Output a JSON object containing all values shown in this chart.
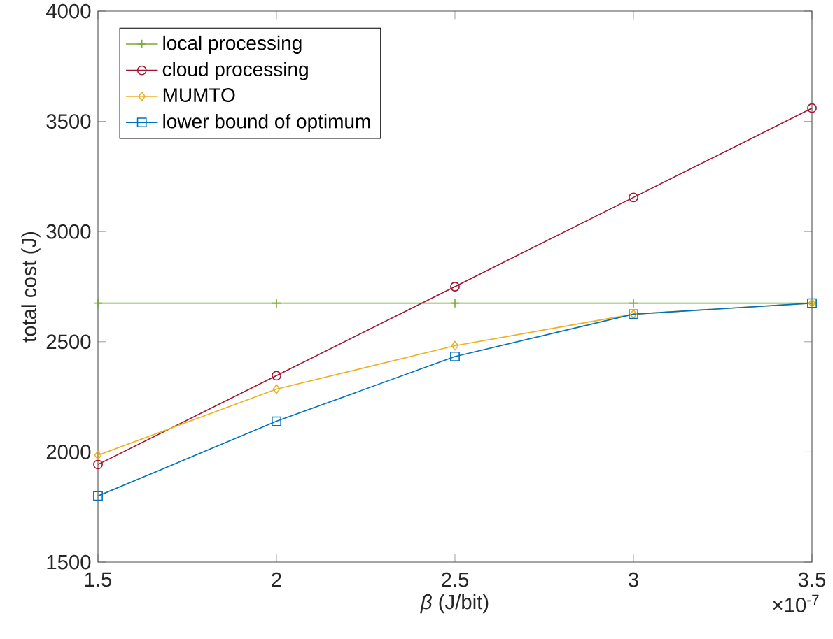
{
  "chart_data": {
    "type": "line",
    "xlabel": "*β* (J/bit)",
    "ylabel": "total cost (J)",
    "x": [
      1.5,
      2,
      2.5,
      3,
      3.5
    ],
    "series": [
      {
        "name": "local processing",
        "color": "#77ac30",
        "marker": "cross",
        "values": [
          2675,
          2675,
          2675,
          2675,
          2675
        ]
      },
      {
        "name": "cloud processing",
        "color": "#a2142f",
        "marker": "circle",
        "values": [
          1943,
          2346,
          2750,
          3155,
          3560
        ]
      },
      {
        "name": "MUMTO",
        "color": "#edb120",
        "marker": "diamond",
        "values": [
          1985,
          2285,
          2482,
          2625,
          2675
        ]
      },
      {
        "name": "lower bound of optimum",
        "color": "#0072bd",
        "marker": "square",
        "values": [
          1800,
          2139,
          2433,
          2625,
          2675
        ]
      }
    ],
    "xlim": [
      1.5,
      3.5
    ],
    "xticks": [
      1.5,
      2,
      2.5,
      3,
      3.5
    ],
    "ylim": [
      1500,
      4000
    ],
    "yticks": [
      1500,
      2000,
      2500,
      3000,
      3500,
      4000
    ],
    "legend": "top left",
    "line_style": "solid",
    "annotations": [
      "×10$^{-7}$"
    ]
  }
}
